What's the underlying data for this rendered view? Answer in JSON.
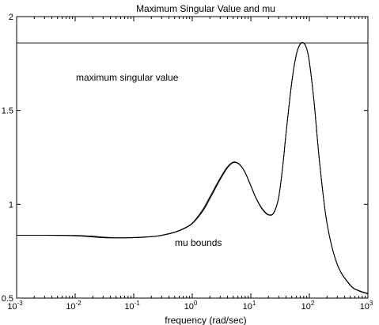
{
  "chart_data": {
    "type": "line",
    "title": "Maximum Singular Value and mu",
    "xlabel": "frequency (rad/sec)",
    "ylabel": "",
    "xscale": "log",
    "xlim": [
      0.001,
      1000
    ],
    "ylim": [
      0.5,
      2
    ],
    "grid": false,
    "x_ticks": [
      {
        "base": "10",
        "exp": "-3"
      },
      {
        "base": "10",
        "exp": "-2"
      },
      {
        "base": "10",
        "exp": "-1"
      },
      {
        "base": "10",
        "exp": "0"
      },
      {
        "base": "10",
        "exp": "1"
      },
      {
        "base": "10",
        "exp": "2"
      },
      {
        "base": "10",
        "exp": "3"
      }
    ],
    "y_ticks": [
      "0.5",
      "1",
      "1.5",
      "2"
    ],
    "annotations": {
      "upper": "maximum singular value",
      "lower": "mu bounds"
    },
    "reference_line": {
      "y": 1.86
    },
    "series": [
      {
        "x": [
          0.001,
          0.003,
          0.01,
          0.02,
          0.03,
          0.05,
          0.1,
          0.2,
          0.3,
          0.5,
          0.7,
          1,
          1.5,
          2,
          3,
          4,
          5,
          6,
          7,
          8,
          10,
          12,
          15,
          18,
          20,
          23,
          26,
          30,
          35,
          40,
          50,
          60,
          70,
          80,
          90,
          100,
          120,
          150,
          200,
          300,
          500,
          700,
          1000
        ],
        "y": [
          0.835,
          0.835,
          0.834,
          0.83,
          0.825,
          0.822,
          0.823,
          0.828,
          0.835,
          0.852,
          0.87,
          0.9,
          0.97,
          1.04,
          1.14,
          1.2,
          1.225,
          1.22,
          1.2,
          1.17,
          1.1,
          1.04,
          0.985,
          0.955,
          0.945,
          0.945,
          0.97,
          1.04,
          1.2,
          1.38,
          1.65,
          1.8,
          1.855,
          1.86,
          1.83,
          1.76,
          1.55,
          1.22,
          0.9,
          0.68,
          0.57,
          0.54,
          0.525
        ]
      },
      {
        "x": [
          0.001,
          0.003,
          0.01,
          0.02,
          0.03,
          0.05,
          0.1,
          0.2,
          0.3,
          0.5,
          0.7,
          1,
          1.5,
          2,
          3,
          4,
          5,
          6,
          7,
          8,
          10,
          12,
          15,
          18,
          20,
          23,
          26,
          30,
          35,
          40,
          50,
          60,
          70,
          80,
          90,
          100,
          120,
          150,
          200,
          300,
          500,
          700,
          1000
        ],
        "y": [
          0.835,
          0.835,
          0.832,
          0.826,
          0.822,
          0.821,
          0.822,
          0.827,
          0.834,
          0.85,
          0.868,
          0.897,
          0.962,
          1.03,
          1.132,
          1.195,
          1.222,
          1.218,
          1.198,
          1.168,
          1.098,
          1.038,
          0.982,
          0.952,
          0.943,
          0.943,
          0.968,
          1.038,
          1.198,
          1.378,
          1.648,
          1.798,
          1.853,
          1.858,
          1.828,
          1.758,
          1.548,
          1.218,
          0.898,
          0.678,
          0.568,
          0.538,
          0.523
        ]
      }
    ]
  }
}
